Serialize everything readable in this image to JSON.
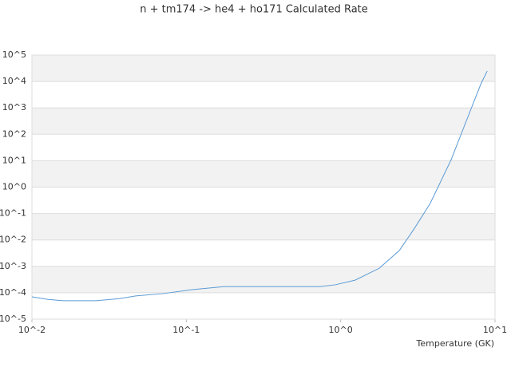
{
  "chart_data": {
    "type": "line",
    "title": "n + tm174 -> he4 + ho171 Calculated Rate",
    "x_label": "Temperature (GK)",
    "x": [
      0.01,
      0.0127,
      0.016,
      0.026,
      0.037,
      0.047,
      0.071,
      0.108,
      0.174,
      0.32,
      0.73,
      0.92,
      1.24,
      1.78,
      2.4,
      3.0,
      3.8,
      5.2,
      6.5,
      8.1,
      8.9
    ],
    "series": [
      {
        "color": "#5b9bd5",
        "values": [
          7e-05,
          5.6e-05,
          5e-05,
          5e-05,
          6e-05,
          7.6e-05,
          9.3e-05,
          0.00013,
          0.00017,
          0.00017,
          0.00017,
          0.0002,
          0.0003,
          0.00085,
          0.004,
          0.027,
          0.24,
          11,
          310,
          8100,
          25000
        ]
      }
    ],
    "xlog": true,
    "ylog": true,
    "xlim": [
      0.01,
      10
    ],
    "xticks": [
      {
        "value": 0.01,
        "label": "10^-2"
      },
      {
        "value": 0.1,
        "label": "10^-1"
      },
      {
        "value": 1,
        "label": "10^0"
      },
      {
        "value": 10,
        "label": "10^1"
      }
    ],
    "ylim": [
      1e-05,
      100000
    ],
    "yticks": [
      {
        "value": 1e-05,
        "label": "10^-5"
      },
      {
        "value": 0.0001,
        "label": "10^-4"
      },
      {
        "value": 0.001,
        "label": "10^-3"
      },
      {
        "value": 0.01,
        "label": "10^-2"
      },
      {
        "value": 0.1,
        "label": "10^-1"
      },
      {
        "value": 1,
        "label": "10^0"
      },
      {
        "value": 10,
        "label": "10^1"
      },
      {
        "value": 100,
        "label": "10^2"
      },
      {
        "value": 1000,
        "label": "10^3"
      },
      {
        "value": 10000,
        "label": "10^4"
      },
      {
        "value": 100000,
        "label": "10^5"
      }
    ],
    "grid": true,
    "grid_bands": true
  }
}
